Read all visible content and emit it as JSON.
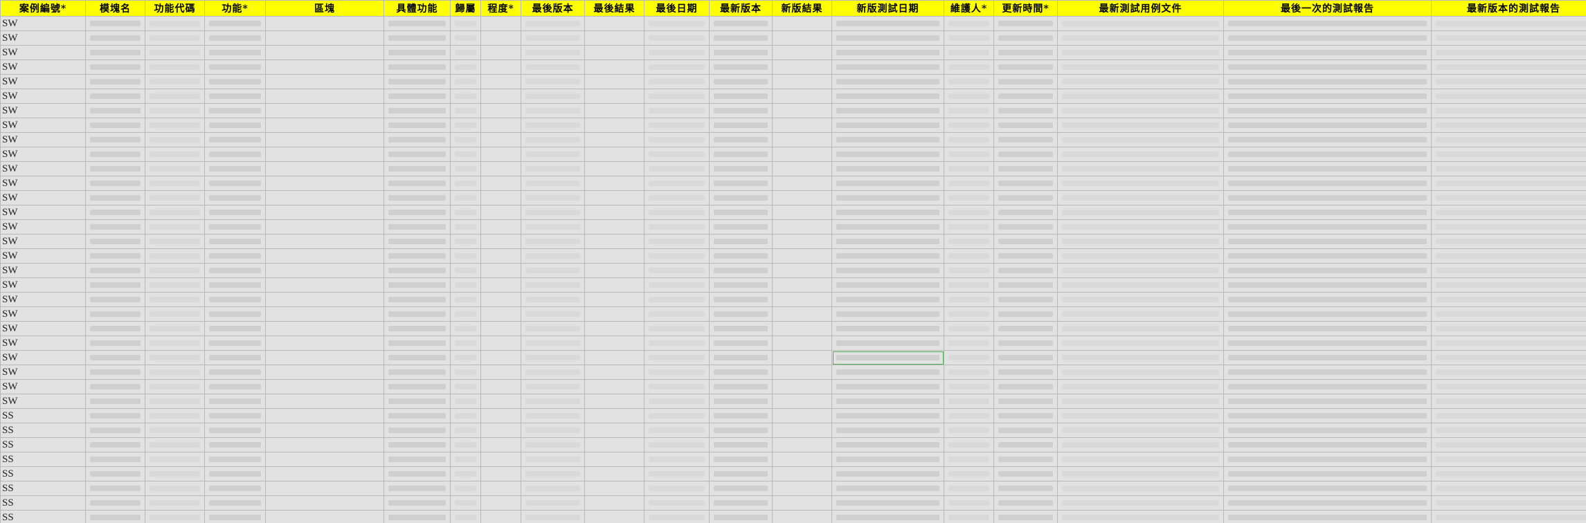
{
  "sheet": {
    "columns": [
      {
        "key": "case_id",
        "label": "案例編號*"
      },
      {
        "key": "module",
        "label": "模塊名"
      },
      {
        "key": "func_code",
        "label": "功能代碼"
      },
      {
        "key": "func",
        "label": "功能*"
      },
      {
        "key": "area",
        "label": "區塊"
      },
      {
        "key": "detail",
        "label": "具體功能"
      },
      {
        "key": "owner",
        "label": "歸屬"
      },
      {
        "key": "severity",
        "label": "程度*"
      },
      {
        "key": "last_ver",
        "label": "最後版本"
      },
      {
        "key": "last_result",
        "label": "最後結果"
      },
      {
        "key": "last_date",
        "label": "最後日期"
      },
      {
        "key": "new_ver",
        "label": "最新版本"
      },
      {
        "key": "new_result",
        "label": "新版結果"
      },
      {
        "key": "new_test_date",
        "label": "新版測試日期"
      },
      {
        "key": "maintainer",
        "label": "維護人*"
      },
      {
        "key": "update_time",
        "label": "更新時間*"
      },
      {
        "key": "latest_case_doc",
        "label": "最新測試用例文件"
      },
      {
        "key": "last_report",
        "label": "最後一次的測試報告"
      },
      {
        "key": "latest_report",
        "label": "最新版本的測試報告"
      },
      {
        "key": "extra",
        "label": ""
      }
    ],
    "rows": [
      {
        "prefix": "SW",
        "mark": "軒",
        "last_result": "warn",
        "new_result": "fail"
      },
      {
        "prefix": "SW",
        "mark": "軒",
        "last_result": "fail",
        "new_result": "fail"
      },
      {
        "prefix": "SW",
        "mark": "軒",
        "last_result": "pass",
        "new_result": "none"
      },
      {
        "prefix": "SW",
        "mark": "軒",
        "last_result": "pass",
        "new_result": "none"
      },
      {
        "prefix": "SW",
        "mark": "軒",
        "last_result": "pass",
        "new_result": "none"
      },
      {
        "prefix": "SW",
        "mark": "軒",
        "last_result": "pass",
        "new_result": "none"
      },
      {
        "prefix": "SW",
        "mark": "軒",
        "last_result": "pass",
        "new_result": "none"
      },
      {
        "prefix": "SW",
        "mark": "軒",
        "last_result": "pass",
        "new_result": "none"
      },
      {
        "prefix": "SW",
        "mark": "軒",
        "last_result": "pass",
        "new_result": "none"
      },
      {
        "prefix": "SW",
        "mark": "軒",
        "last_result": "pass",
        "new_result": "none"
      },
      {
        "prefix": "SW",
        "mark": "軒",
        "last_result": "pass",
        "new_result": "none"
      },
      {
        "prefix": "SW",
        "mark": "軒",
        "last_result": "pass",
        "new_result": "none"
      },
      {
        "prefix": "SW",
        "mark": "軒",
        "last_result": "pass",
        "new_result": "none"
      },
      {
        "prefix": "SW",
        "mark": "軒",
        "last_result": "pass",
        "new_result": "none"
      },
      {
        "prefix": "SW",
        "mark": "軒",
        "last_result": "pass",
        "new_result": "none"
      },
      {
        "prefix": "SW",
        "mark": "軒",
        "last_result": "pass",
        "new_result": "none"
      },
      {
        "prefix": "SW",
        "mark": "軒",
        "last_result": "pass",
        "new_result": "none"
      },
      {
        "prefix": "SW",
        "mark": "軒",
        "last_result": "pass",
        "new_result": "none"
      },
      {
        "prefix": "SW",
        "mark": "軒",
        "last_result": "pass",
        "new_result": "none"
      },
      {
        "prefix": "SW",
        "mark": "軒",
        "last_result": "pass",
        "new_result": "none"
      },
      {
        "prefix": "SW",
        "mark": "軒",
        "last_result": "pass",
        "new_result": "none"
      },
      {
        "prefix": "SW",
        "mark": "軒",
        "last_result": "pass",
        "new_result": "none"
      },
      {
        "prefix": "SW",
        "mark": "軒",
        "last_result": "pass",
        "new_result": "none"
      },
      {
        "prefix": "SW",
        "mark": "軒",
        "last_result": "pass",
        "new_result": "none"
      },
      {
        "prefix": "SW",
        "mark": "軒",
        "last_result": "pass",
        "new_result": "none"
      },
      {
        "prefix": "SW",
        "mark": "軒",
        "last_result": "pass",
        "new_result": "none"
      },
      {
        "prefix": "SW",
        "mark": "軒",
        "last_result": "pass",
        "new_result": "none"
      },
      {
        "prefix": "SS",
        "mark": "樺",
        "last_result": "warn",
        "new_result": "warn"
      },
      {
        "prefix": "SS",
        "mark": "樺",
        "last_result": "warn",
        "new_result": "warn"
      },
      {
        "prefix": "SS",
        "mark": "樺",
        "last_result": "warn",
        "new_result": "warn"
      },
      {
        "prefix": "SS",
        "mark": "樺",
        "last_result": "warn",
        "new_result": "warn"
      },
      {
        "prefix": "SS",
        "mark": "樺",
        "last_result": "warn",
        "new_result": "warn"
      },
      {
        "prefix": "SS",
        "mark": "樺",
        "last_result": "warn",
        "new_result": "warn"
      },
      {
        "prefix": "SS",
        "mark": "樺",
        "last_result": "warn",
        "new_result": "warn"
      },
      {
        "prefix": "SS",
        "mark": "樺",
        "last_result": "warn",
        "new_result": "warn"
      }
    ],
    "colors": {
      "header_bg": "#ffff00",
      "severity": "#b8483a",
      "pass": "#79b98c",
      "fail": "#d9703f",
      "warn": "#e6b01c"
    }
  }
}
